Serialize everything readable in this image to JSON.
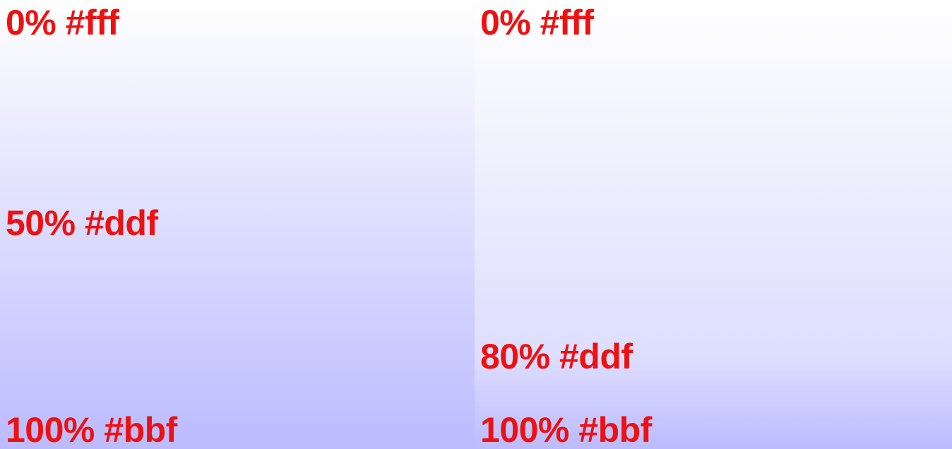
{
  "colors": {
    "label_text": "#ee1111",
    "stop_white": "#ffffff",
    "stop_mid": "#ddddff",
    "stop_end": "#bbbbff"
  },
  "panels": [
    {
      "stops": [
        {
          "position": 0.0,
          "color": "#ffffff",
          "label": "0% #fff"
        },
        {
          "position": 0.5,
          "color": "#ddddff",
          "label": "50% #ddf"
        },
        {
          "position": 1.0,
          "color": "#bbbbff",
          "label": "100% #bbf"
        }
      ]
    },
    {
      "stops": [
        {
          "position": 0.0,
          "color": "#ffffff",
          "label": "0% #fff"
        },
        {
          "position": 0.8,
          "color": "#ddddff",
          "label": "80% #ddf"
        },
        {
          "position": 1.0,
          "color": "#bbbbff",
          "label": "100% #bbf"
        }
      ]
    }
  ]
}
